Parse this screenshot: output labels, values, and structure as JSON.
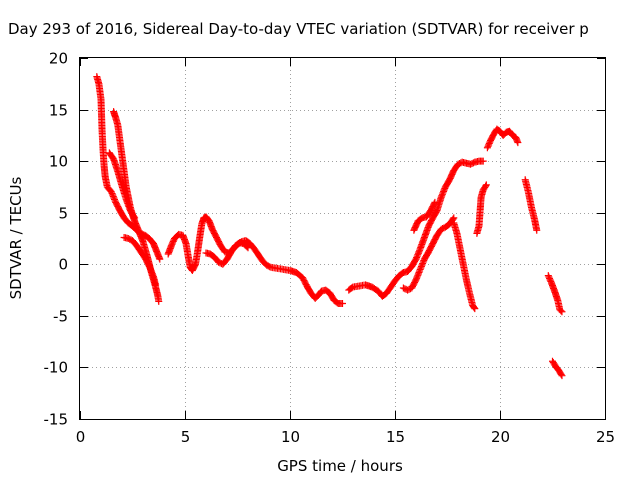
{
  "chart_data": {
    "type": "scatter",
    "title": "Day 293 of 2016, Sidereal Day-to-day VTEC variation (SDTVAR) for receiver p",
    "xlabel": "GPS time / hours",
    "ylabel": "SDTVAR / TECUs",
    "xlim": [
      0,
      25
    ],
    "ylim": [
      -15,
      20
    ],
    "x_ticks": [
      0,
      5,
      10,
      15,
      20,
      25
    ],
    "y_ticks": [
      -15,
      -10,
      -5,
      0,
      5,
      10,
      15,
      20
    ],
    "x_tick_labels": [
      "0",
      "5",
      "10",
      "15",
      "20",
      "25"
    ],
    "y_tick_labels": [
      "-15",
      "-10",
      "-5",
      "0",
      "5",
      "10",
      "15",
      "20"
    ],
    "grid": true,
    "marker": "plus",
    "marker_color": "#ff0000",
    "series": [
      {
        "points": [
          [
            0.8,
            18.2
          ],
          [
            0.9,
            17.5
          ],
          [
            1.0,
            16.0
          ],
          [
            1.05,
            13.0
          ],
          [
            1.1,
            11.0
          ],
          [
            1.15,
            9.5
          ],
          [
            1.2,
            8.5
          ],
          [
            1.3,
            7.5
          ],
          [
            1.5,
            7.0
          ],
          [
            1.7,
            6.0
          ],
          [
            1.9,
            5.2
          ],
          [
            2.1,
            4.5
          ],
          [
            2.3,
            4.0
          ],
          [
            2.5,
            3.7
          ],
          [
            2.7,
            3.3
          ],
          [
            2.9,
            3.0
          ],
          [
            3.1,
            2.8
          ],
          [
            3.3,
            2.5
          ],
          [
            3.5,
            2.0
          ],
          [
            3.6,
            1.5
          ],
          [
            3.7,
            1.0
          ],
          [
            3.8,
            0.5
          ]
        ]
      },
      {
        "points": [
          [
            1.6,
            14.8
          ],
          [
            1.7,
            14.2
          ],
          [
            1.8,
            13.5
          ],
          [
            1.9,
            12.0
          ],
          [
            2.0,
            10.5
          ],
          [
            2.1,
            9.0
          ],
          [
            2.2,
            7.5
          ],
          [
            2.3,
            6.5
          ],
          [
            2.4,
            5.5
          ],
          [
            2.5,
            4.8
          ],
          [
            2.6,
            4.2
          ],
          [
            2.7,
            3.7
          ],
          [
            2.8,
            3.2
          ],
          [
            2.9,
            2.7
          ],
          [
            3.0,
            2.2
          ],
          [
            3.1,
            1.5
          ],
          [
            3.2,
            0.8
          ],
          [
            3.3,
            0.0
          ],
          [
            3.4,
            -0.8
          ],
          [
            3.5,
            -1.5
          ],
          [
            3.6,
            -2.2
          ],
          [
            3.7,
            -3.0
          ],
          [
            3.75,
            -3.6
          ]
        ]
      },
      {
        "points": [
          [
            2.1,
            2.6
          ],
          [
            2.3,
            2.5
          ],
          [
            2.5,
            2.3
          ],
          [
            2.7,
            1.8
          ],
          [
            2.9,
            1.2
          ],
          [
            3.1,
            0.6
          ],
          [
            3.3,
            -0.2
          ],
          [
            3.5,
            -1.2
          ],
          [
            3.6,
            -2.0
          ]
        ]
      },
      {
        "points": [
          [
            1.4,
            10.8
          ],
          [
            1.6,
            10.2
          ],
          [
            1.8,
            9.0
          ],
          [
            2.0,
            7.6
          ],
          [
            2.2,
            6.3
          ],
          [
            2.4,
            5.2
          ],
          [
            2.6,
            4.5
          ]
        ]
      },
      {
        "points": [
          [
            4.2,
            1.0
          ],
          [
            4.35,
            1.8
          ],
          [
            4.5,
            2.5
          ],
          [
            4.7,
            2.9
          ],
          [
            4.9,
            2.8
          ],
          [
            5.05,
            2.0
          ],
          [
            5.15,
            0.8
          ],
          [
            5.25,
            -0.3
          ],
          [
            5.35,
            -0.6
          ],
          [
            5.5,
            0.0
          ],
          [
            5.6,
            1.2
          ],
          [
            5.7,
            2.6
          ],
          [
            5.8,
            3.9
          ],
          [
            5.9,
            4.5
          ],
          [
            6.0,
            4.6
          ],
          [
            6.15,
            4.2
          ],
          [
            6.3,
            3.4
          ],
          [
            6.5,
            2.6
          ],
          [
            6.7,
            1.8
          ],
          [
            6.9,
            1.2
          ],
          [
            7.1,
            1.1
          ],
          [
            7.3,
            1.5
          ],
          [
            7.5,
            1.9
          ],
          [
            7.7,
            2.2
          ],
          [
            7.9,
            2.3
          ],
          [
            8.1,
            2.0
          ],
          [
            8.3,
            1.5
          ],
          [
            8.5,
            0.9
          ],
          [
            8.7,
            0.3
          ],
          [
            8.9,
            -0.1
          ],
          [
            9.1,
            -0.3
          ],
          [
            9.4,
            -0.4
          ],
          [
            9.7,
            -0.5
          ],
          [
            10.0,
            -0.6
          ],
          [
            10.3,
            -0.8
          ],
          [
            10.6,
            -1.3
          ],
          [
            10.8,
            -2.1
          ],
          [
            11.0,
            -2.8
          ],
          [
            11.2,
            -3.3
          ],
          [
            11.35,
            -3.0
          ],
          [
            11.5,
            -2.6
          ],
          [
            11.7,
            -2.5
          ],
          [
            11.9,
            -2.8
          ],
          [
            12.1,
            -3.5
          ],
          [
            12.3,
            -3.8
          ],
          [
            12.5,
            -3.8
          ]
        ]
      },
      {
        "points": [
          [
            6.0,
            1.1
          ],
          [
            6.2,
            1.0
          ],
          [
            6.4,
            0.7
          ],
          [
            6.6,
            0.2
          ],
          [
            6.8,
            0.0
          ],
          [
            7.0,
            0.5
          ],
          [
            7.2,
            1.2
          ],
          [
            7.4,
            1.8
          ],
          [
            7.6,
            2.1
          ],
          [
            7.8,
            2.0
          ],
          [
            8.0,
            1.6
          ]
        ]
      },
      {
        "points": [
          [
            12.8,
            -2.5
          ],
          [
            13.0,
            -2.2
          ],
          [
            13.3,
            -2.1
          ],
          [
            13.6,
            -2.0
          ],
          [
            13.9,
            -2.2
          ],
          [
            14.2,
            -2.6
          ],
          [
            14.4,
            -3.1
          ],
          [
            14.6,
            -2.8
          ],
          [
            14.8,
            -2.2
          ],
          [
            15.0,
            -1.6
          ],
          [
            15.2,
            -1.1
          ],
          [
            15.4,
            -0.8
          ],
          [
            15.6,
            -0.7
          ],
          [
            15.8,
            -0.2
          ],
          [
            16.0,
            0.5
          ],
          [
            16.2,
            1.5
          ],
          [
            16.4,
            2.6
          ],
          [
            16.6,
            3.7
          ],
          [
            16.8,
            4.5
          ],
          [
            17.0,
            5.2
          ],
          [
            17.2,
            6.5
          ],
          [
            17.4,
            7.5
          ],
          [
            17.6,
            8.2
          ],
          [
            17.8,
            9.1
          ],
          [
            18.0,
            9.7
          ],
          [
            18.2,
            9.9
          ],
          [
            18.4,
            9.8
          ],
          [
            18.6,
            9.7
          ],
          [
            18.8,
            9.9
          ],
          [
            19.0,
            10.0
          ],
          [
            19.2,
            10.0
          ]
        ]
      },
      {
        "points": [
          [
            15.4,
            -2.3
          ],
          [
            15.6,
            -2.5
          ],
          [
            15.8,
            -2.3
          ],
          [
            16.0,
            -1.5
          ],
          [
            16.2,
            -0.5
          ],
          [
            16.4,
            0.5
          ],
          [
            16.6,
            1.2
          ],
          [
            16.8,
            2.0
          ],
          [
            17.0,
            2.8
          ],
          [
            17.2,
            3.4
          ],
          [
            17.4,
            3.6
          ],
          [
            17.6,
            3.9
          ],
          [
            17.8,
            4.5
          ]
        ]
      },
      {
        "points": [
          [
            15.9,
            3.3
          ],
          [
            16.1,
            4.2
          ],
          [
            16.3,
            4.5
          ],
          [
            16.5,
            4.6
          ],
          [
            16.7,
            5.2
          ],
          [
            16.9,
            6.0
          ]
        ]
      },
      {
        "points": [
          [
            17.8,
            4.0
          ],
          [
            17.95,
            3.0
          ],
          [
            18.1,
            1.5
          ],
          [
            18.25,
            0.0
          ],
          [
            18.4,
            -1.5
          ],
          [
            18.55,
            -2.8
          ],
          [
            18.7,
            -4.0
          ],
          [
            18.8,
            -4.3
          ]
        ]
      },
      {
        "points": [
          [
            18.9,
            3.0
          ],
          [
            19.0,
            3.7
          ],
          [
            19.1,
            6.5
          ],
          [
            19.2,
            7.2
          ],
          [
            19.35,
            7.7
          ]
        ]
      },
      {
        "points": [
          [
            19.4,
            11.3
          ],
          [
            19.55,
            12.0
          ],
          [
            19.7,
            12.6
          ],
          [
            19.85,
            13.1
          ],
          [
            20.0,
            12.9
          ],
          [
            20.15,
            12.5
          ],
          [
            20.3,
            12.8
          ],
          [
            20.45,
            12.9
          ],
          [
            20.6,
            12.5
          ],
          [
            20.75,
            12.3
          ],
          [
            20.85,
            11.8
          ]
        ]
      },
      {
        "points": [
          [
            21.2,
            8.2
          ],
          [
            21.35,
            7.0
          ],
          [
            21.5,
            5.5
          ],
          [
            21.65,
            4.3
          ],
          [
            21.75,
            3.3
          ]
        ]
      },
      {
        "points": [
          [
            22.3,
            -1.1
          ],
          [
            22.45,
            -1.8
          ],
          [
            22.6,
            -2.6
          ],
          [
            22.75,
            -3.5
          ],
          [
            22.85,
            -4.4
          ],
          [
            22.95,
            -4.6
          ]
        ]
      },
      {
        "points": [
          [
            22.5,
            -9.4
          ],
          [
            22.65,
            -9.9
          ],
          [
            22.8,
            -10.3
          ],
          [
            22.95,
            -10.8
          ]
        ]
      }
    ]
  }
}
